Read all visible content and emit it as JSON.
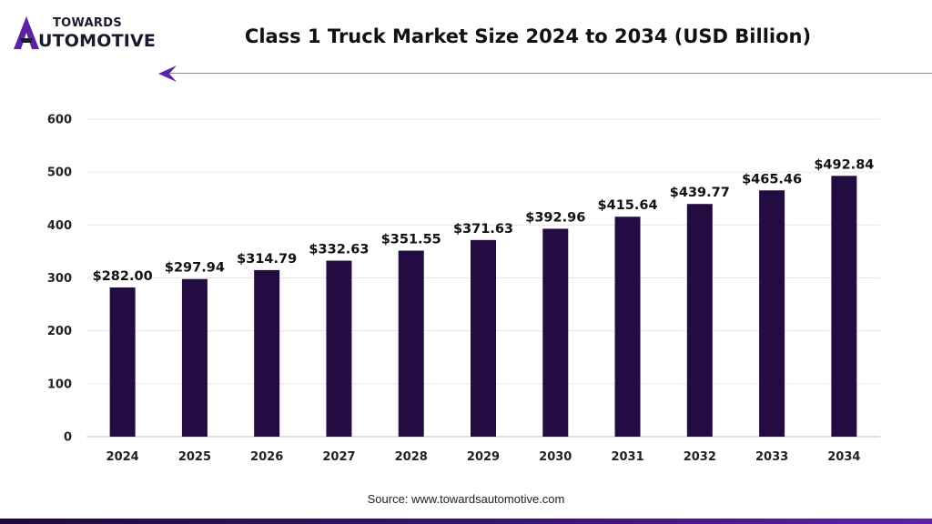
{
  "logo": {
    "line1": "TOWARDS",
    "line2": "UTOMOTIVE"
  },
  "colors": {
    "bar": "#240c42",
    "accent": "#5b22a8",
    "grid": "#e6e6e6"
  },
  "chart_data": {
    "type": "bar",
    "title": "Class 1 Truck Market Size 2024 to 2034 (USD Billion)",
    "categories": [
      "2024",
      "2025",
      "2026",
      "2027",
      "2028",
      "2029",
      "2030",
      "2031",
      "2032",
      "2033",
      "2034"
    ],
    "values": [
      282.0,
      297.94,
      314.79,
      332.63,
      351.55,
      371.63,
      392.96,
      415.64,
      439.77,
      465.46,
      492.84
    ],
    "labels": [
      "$282.00",
      "$297.94",
      "$314.79",
      "$332.63",
      "$351.55",
      "$371.63",
      "$392.96",
      "$415.64",
      "$439.77",
      "$465.46",
      "$492.84"
    ],
    "yticks": [
      0,
      100,
      200,
      300,
      400,
      500,
      600
    ],
    "ylim": [
      0,
      600
    ],
    "grid": true
  },
  "source": "Source: www.towardsautomotive.com"
}
